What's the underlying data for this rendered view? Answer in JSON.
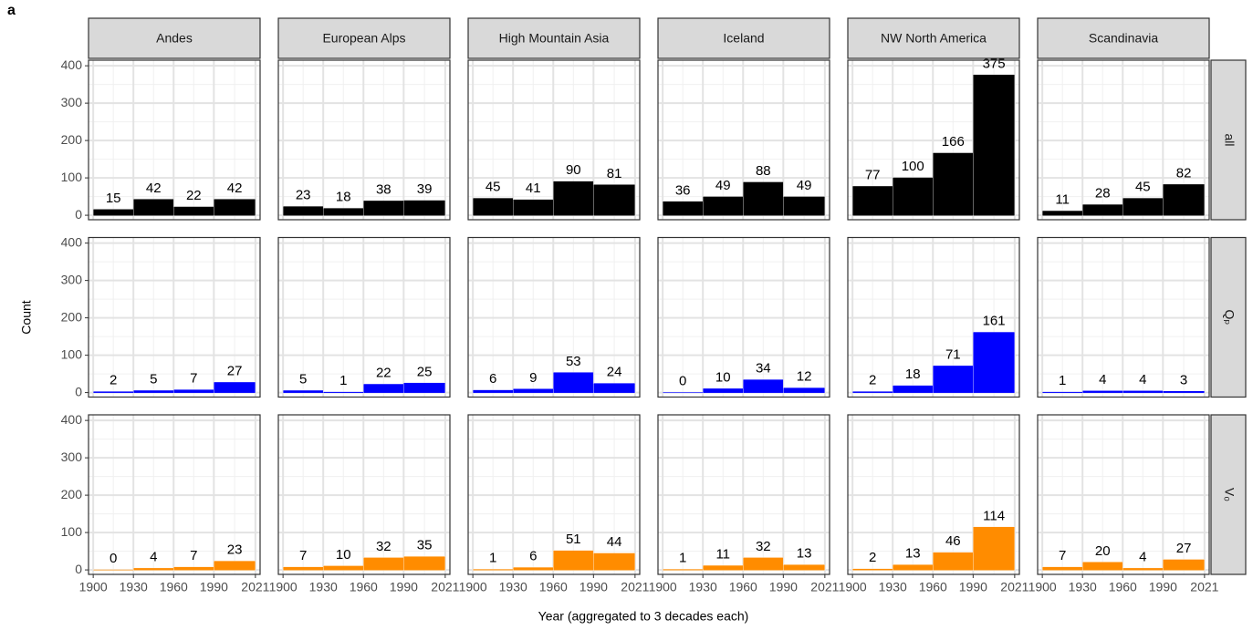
{
  "panel_label": "a",
  "chart_data": {
    "type": "histogram",
    "xlabel": "Year (aggregated to 3 decades each)",
    "ylabel": "Count",
    "bins": [
      1900,
      1930,
      1960,
      1990,
      2021
    ],
    "xlim": [
      1896.5,
      2024.5
    ],
    "xticks": [
      1900,
      1930,
      1960,
      1990,
      2021
    ],
    "ylim": [
      -12,
      415
    ],
    "yticks": [
      0,
      100,
      200,
      300,
      400
    ],
    "grid": true,
    "columns": [
      "Andes",
      "European Alps",
      "High Mountain Asia",
      "Iceland",
      "NW North America",
      "Scandinavia"
    ],
    "rows": [
      {
        "name": "all",
        "color": "#000000",
        "values": [
          [
            15,
            42,
            22,
            42
          ],
          [
            23,
            18,
            38,
            39
          ],
          [
            45,
            41,
            90,
            81
          ],
          [
            36,
            49,
            88,
            49
          ],
          [
            77,
            100,
            166,
            375
          ],
          [
            11,
            28,
            45,
            82
          ]
        ]
      },
      {
        "name": "Qₚ",
        "color": "#0000ff",
        "values": [
          [
            2,
            5,
            7,
            27
          ],
          [
            5,
            1,
            22,
            25
          ],
          [
            6,
            9,
            53,
            24
          ],
          [
            0,
            10,
            34,
            12
          ],
          [
            2,
            18,
            71,
            161
          ],
          [
            1,
            4,
            4,
            3
          ]
        ]
      },
      {
        "name": "V₀",
        "color": "#ff8c00",
        "values": [
          [
            0,
            4,
            7,
            23
          ],
          [
            7,
            10,
            32,
            35
          ],
          [
            1,
            6,
            51,
            44
          ],
          [
            1,
            11,
            32,
            13
          ],
          [
            2,
            13,
            46,
            114
          ],
          [
            7,
            20,
            4,
            27
          ]
        ]
      }
    ]
  }
}
